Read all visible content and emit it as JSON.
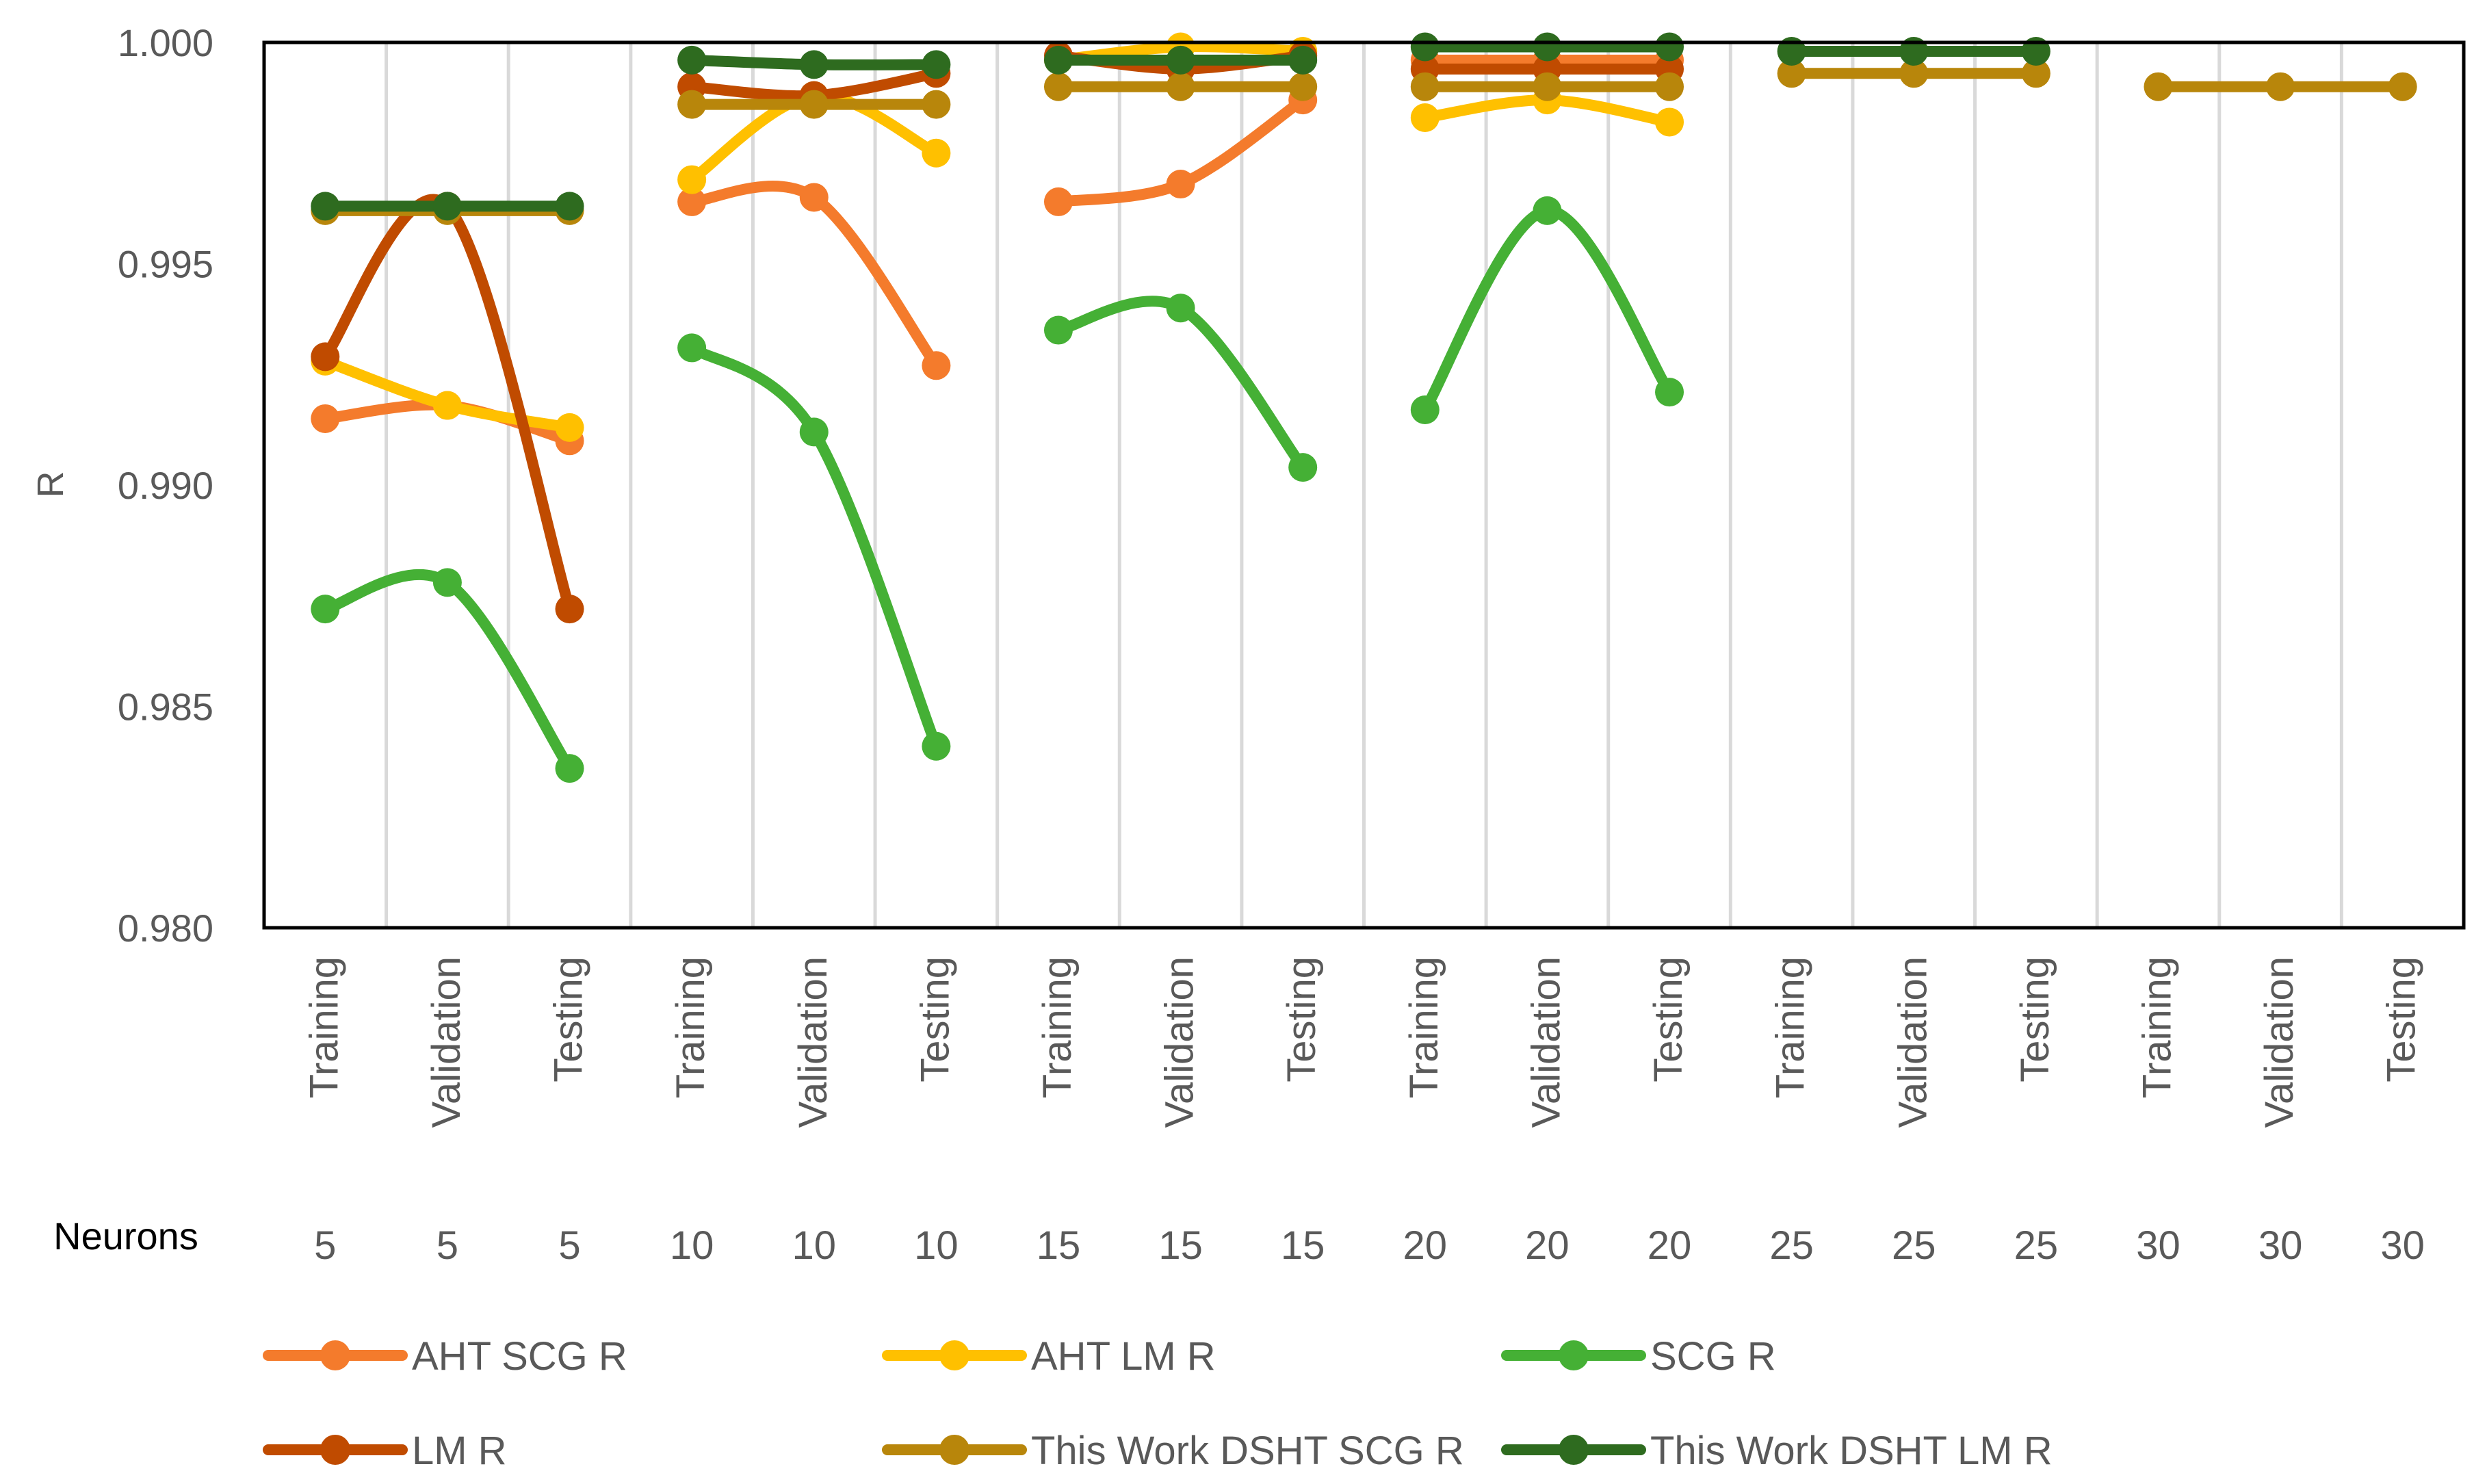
{
  "chart_data": {
    "type": "line",
    "title": "",
    "ylabel": "R",
    "ylim": [
      0.98,
      1.0
    ],
    "yticks": [
      "0.980",
      "0.985",
      "0.990",
      "0.995",
      "1.000"
    ],
    "categories": [
      "Training",
      "Validation",
      "Testing",
      "Training",
      "Validation",
      "Testing",
      "Training",
      "Validation",
      "Testing",
      "Training",
      "Validation",
      "Testing",
      "Training",
      "Validation",
      "Testing",
      "Training",
      "Validation",
      "Testing"
    ],
    "neurons_label": "Neurons",
    "neurons": [
      "5",
      "5",
      "5",
      "10",
      "10",
      "10",
      "15",
      "15",
      "15",
      "20",
      "20",
      "20",
      "25",
      "25",
      "25",
      "30",
      "30",
      "30"
    ],
    "series": [
      {
        "name": "AHT SCG R",
        "color": "#F47B2C",
        "values": [
          0.9915,
          0.9918,
          0.991,
          0.9964,
          0.9965,
          0.9927,
          0.9964,
          0.9968,
          0.9987,
          0.9996,
          0.9996,
          0.9996,
          null,
          null,
          null,
          null,
          null,
          null
        ]
      },
      {
        "name": "AHT LM R",
        "color": "#FFC000",
        "values": [
          0.9928,
          0.9918,
          0.9913,
          0.9969,
          0.9988,
          0.9975,
          0.9996,
          0.9999,
          0.9998,
          0.9983,
          0.9987,
          0.9982,
          null,
          null,
          null,
          null,
          null,
          null
        ]
      },
      {
        "name": "SCG R",
        "color": "#45B035",
        "values": [
          0.9872,
          0.9878,
          0.9836,
          0.9931,
          0.9912,
          0.9841,
          0.9935,
          0.994,
          0.9904,
          0.9917,
          0.9962,
          0.9921,
          null,
          null,
          null,
          null,
          null,
          null
        ]
      },
      {
        "name": "LM R",
        "color": "#C04B00",
        "values": [
          0.9929,
          0.9963,
          0.9872,
          0.999,
          0.9988,
          0.9993,
          0.9997,
          0.9994,
          0.9997,
          0.9994,
          0.9994,
          0.9994,
          null,
          null,
          null,
          null,
          null,
          null
        ]
      },
      {
        "name": "This Work DSHT SCG R",
        "color": "#B8860B",
        "values": [
          0.9962,
          0.9962,
          0.9962,
          0.9986,
          0.9986,
          0.9986,
          0.999,
          0.999,
          0.999,
          0.999,
          0.999,
          0.999,
          0.9993,
          0.9993,
          0.9993,
          0.999,
          0.999,
          0.999
        ]
      },
      {
        "name": "This Work DSHT LM R",
        "color": "#2E6B1F",
        "values": [
          0.9963,
          0.9963,
          0.9963,
          0.9996,
          0.9995,
          0.9995,
          0.9996,
          0.9996,
          0.9996,
          0.9999,
          0.9999,
          0.9999,
          0.9998,
          0.9998,
          0.9998,
          null,
          null,
          null
        ]
      }
    ],
    "legend_position": "bottom"
  }
}
